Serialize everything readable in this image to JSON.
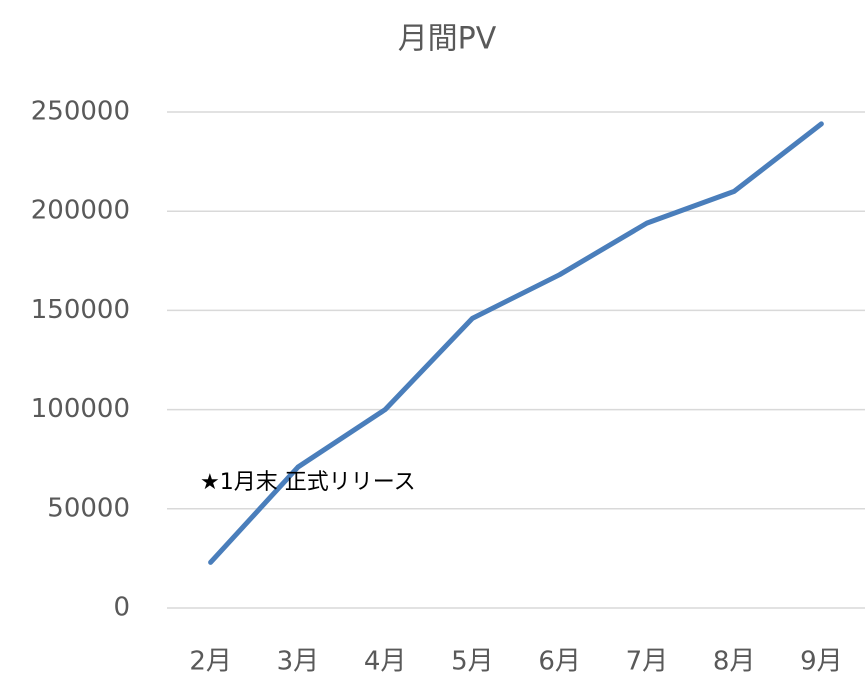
{
  "chart_data": {
    "type": "line",
    "title": "月間PV",
    "categories": [
      "2月",
      "3月",
      "4月",
      "5月",
      "6月",
      "7月",
      "8月",
      "9月"
    ],
    "series": [
      {
        "name": "月間PV",
        "color": "#4a7ebb",
        "values": [
          23000,
          71000,
          100000,
          146000,
          168000,
          194000,
          210000,
          244000
        ]
      }
    ],
    "ylim": [
      0,
      250000
    ],
    "yticks": [
      0,
      50000,
      100000,
      150000,
      200000,
      250000
    ],
    "grid": true,
    "annotations": [
      "★1月末 正式リリース"
    ]
  }
}
